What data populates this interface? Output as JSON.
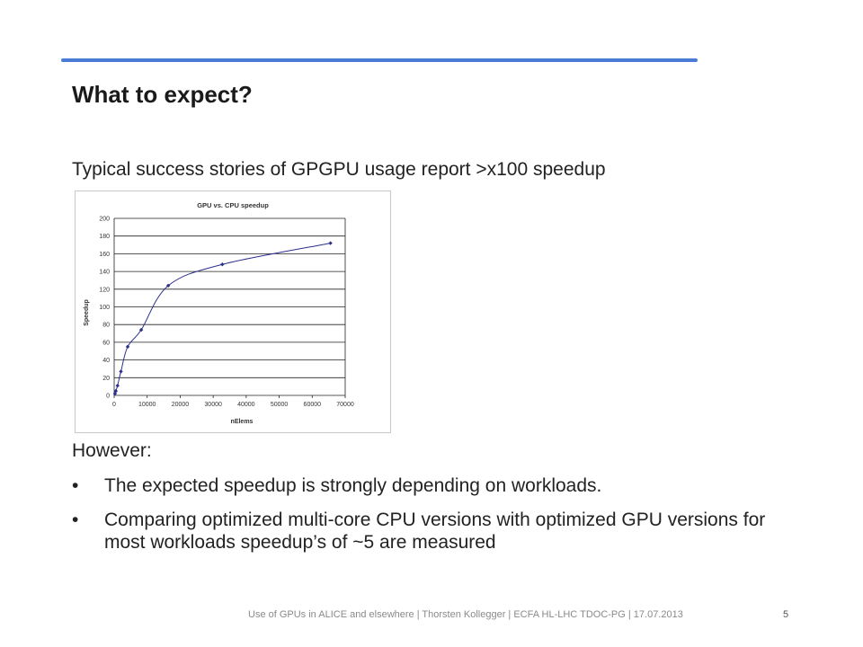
{
  "slide": {
    "title": "What to expect?",
    "intro": "Typical success stories of GPGPU usage report >x100 speedup",
    "however": "However:",
    "bullets": [
      "The expected speedup is strongly depending on workloads.",
      "Comparing optimized multi-core CPU versions with optimized GPU versions for most workloads speedup’s of ~5 are measured"
    ],
    "bullet_symbol": "•",
    "footer": "Use of GPUs in ALICE and elsewhere | Thorsten Kollegger | ECFA HL-LHC TDOC-PG | 17.07.2013",
    "page_number": "5",
    "colors": {
      "accent_line": "#4a7bd6",
      "curve": "#2a2f8a"
    }
  },
  "chart_data": {
    "type": "scatter",
    "title": "GPU vs. CPU speedup",
    "xlabel": "nElems",
    "ylabel": "Speedup",
    "xlim": [
      0,
      70000
    ],
    "ylim": [
      0,
      200
    ],
    "xticks": [
      "0",
      "10000",
      "20000",
      "30000",
      "40000",
      "50000",
      "60000",
      "70000"
    ],
    "yticks": [
      "0",
      "20",
      "40",
      "60",
      "80",
      "100",
      "120",
      "140",
      "160",
      "180",
      "200"
    ],
    "grid": "horizontal",
    "smooth_line": true,
    "x": [
      256,
      512,
      1024,
      2048,
      4096,
      8192,
      16384,
      32768,
      65536
    ],
    "y": [
      2,
      5,
      11,
      27,
      55,
      74,
      124,
      148,
      172
    ]
  }
}
